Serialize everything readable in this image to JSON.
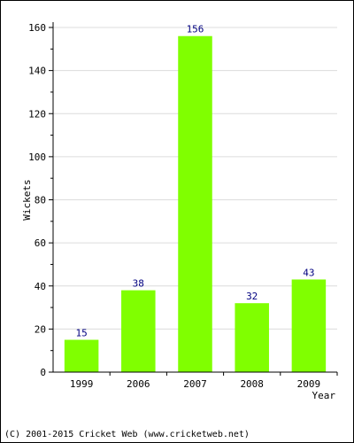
{
  "chart_data": {
    "type": "bar",
    "categories": [
      "1999",
      "2006",
      "2007",
      "2008",
      "2009"
    ],
    "values": [
      15,
      38,
      156,
      32,
      43
    ],
    "ylabel": "Wickets",
    "xlabel": "Year",
    "ylim": [
      0,
      160
    ],
    "yticks": [
      0,
      20,
      40,
      60,
      80,
      100,
      120,
      140,
      160
    ],
    "grid": true,
    "bar_color": "#80ff00",
    "label_color": "#000080"
  },
  "footer": "(C) 2001-2015 Cricket Web (www.cricketweb.net)"
}
